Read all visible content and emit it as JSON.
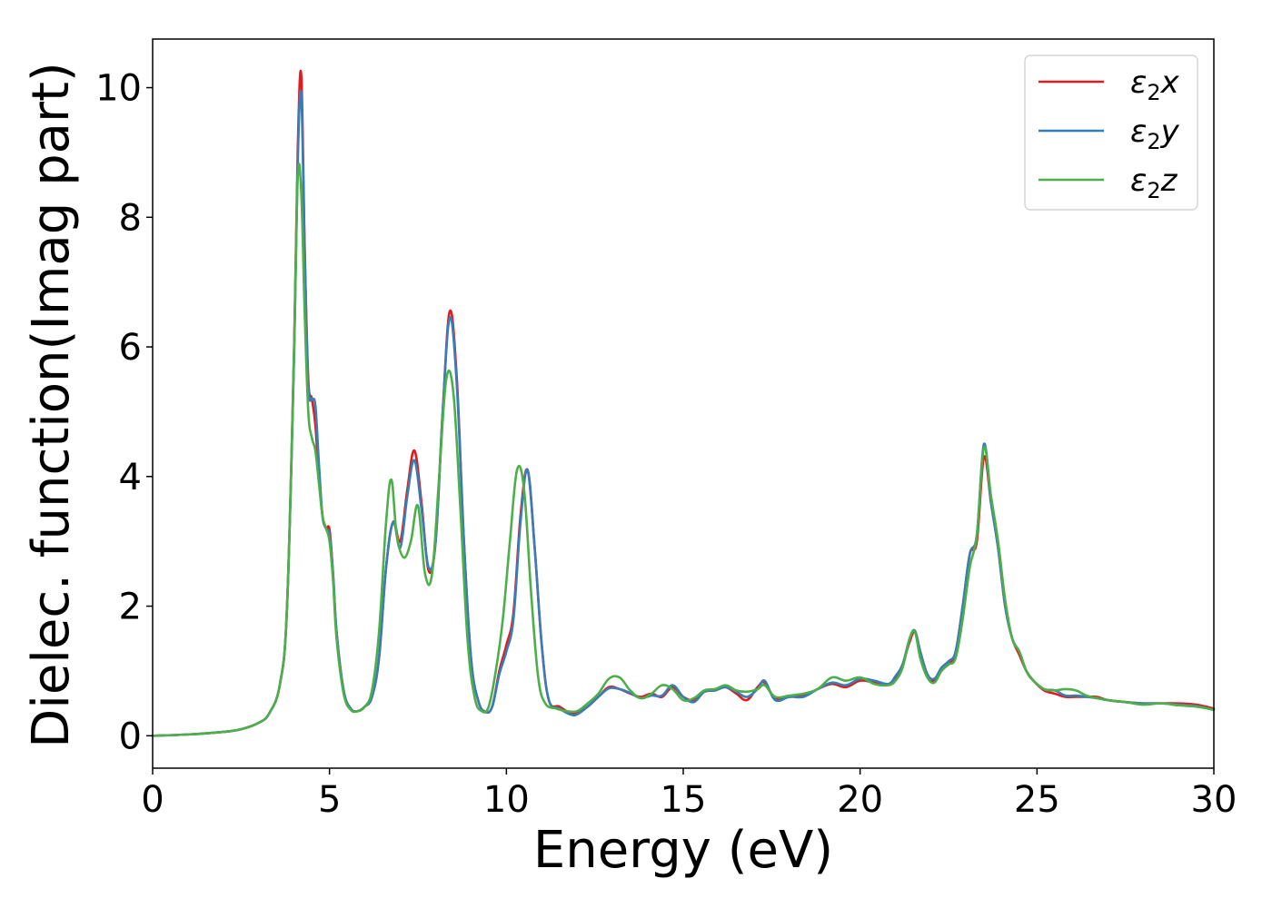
{
  "chart_data": {
    "type": "line",
    "title": "",
    "xlabel": "Energy (eV)",
    "ylabel": "Dielec. function(Imag part)",
    "xlim": [
      0,
      30
    ],
    "ylim": [
      -0.5,
      10.75
    ],
    "xticks": [
      0,
      5,
      10,
      15,
      20,
      25,
      30
    ],
    "yticks": [
      0,
      2,
      4,
      6,
      8,
      10
    ],
    "xtick_labels": [
      "0",
      "5",
      "10",
      "15",
      "20",
      "25",
      "30"
    ],
    "ytick_labels": [
      "0",
      "2",
      "4",
      "6",
      "8",
      "10"
    ],
    "grid": false,
    "legend_position": "top-right",
    "series": [
      {
        "name": "ε2x",
        "legend_base": "ε",
        "legend_sub": "2",
        "legend_var": "x",
        "color": "#e41a1c",
        "x": [
          0,
          1,
          2,
          2.5,
          3,
          3.3,
          3.6,
          3.8,
          4.0,
          4.1,
          4.2,
          4.3,
          4.4,
          4.5,
          4.6,
          4.7,
          4.8,
          4.9,
          5.0,
          5.1,
          5.2,
          5.4,
          5.6,
          5.8,
          6.0,
          6.2,
          6.4,
          6.6,
          6.8,
          7.0,
          7.2,
          7.4,
          7.6,
          7.8,
          8.0,
          8.2,
          8.4,
          8.6,
          8.8,
          9.0,
          9.2,
          9.4,
          9.6,
          9.8,
          10.0,
          10.2,
          10.4,
          10.6,
          10.8,
          11.0,
          11.2,
          11.5,
          11.8,
          12.0,
          12.3,
          12.6,
          12.9,
          13.2,
          13.5,
          13.8,
          14.1,
          14.4,
          14.7,
          15.0,
          15.3,
          15.6,
          15.9,
          16.2,
          16.5,
          16.8,
          17.1,
          17.3,
          17.6,
          18.0,
          18.4,
          18.8,
          19.2,
          19.6,
          20.0,
          20.4,
          20.8,
          21.0,
          21.2,
          21.4,
          21.55,
          21.7,
          21.9,
          22.1,
          22.3,
          22.5,
          22.7,
          22.9,
          23.1,
          23.3,
          23.5,
          23.7,
          23.9,
          24.1,
          24.3,
          24.5,
          24.7,
          24.9,
          25.2,
          25.5,
          25.8,
          26.1,
          26.4,
          26.7,
          27.0,
          27.5,
          28.0,
          28.5,
          29.0,
          29.5,
          30.0
        ],
        "y": [
          0.0,
          0.02,
          0.06,
          0.1,
          0.2,
          0.35,
          0.8,
          2.0,
          6.0,
          9.0,
          10.2,
          7.5,
          5.5,
          5.2,
          4.8,
          4.0,
          3.4,
          3.2,
          3.18,
          2.5,
          1.6,
          0.7,
          0.42,
          0.38,
          0.45,
          0.6,
          1.2,
          2.6,
          3.3,
          3.0,
          3.8,
          4.4,
          3.6,
          2.55,
          3.0,
          5.0,
          6.55,
          5.5,
          3.0,
          1.2,
          0.55,
          0.37,
          0.45,
          1.0,
          1.4,
          1.9,
          3.4,
          4.1,
          2.9,
          1.4,
          0.55,
          0.45,
          0.35,
          0.35,
          0.45,
          0.6,
          0.75,
          0.72,
          0.65,
          0.6,
          0.65,
          0.6,
          0.75,
          0.6,
          0.55,
          0.68,
          0.7,
          0.75,
          0.65,
          0.55,
          0.75,
          0.82,
          0.58,
          0.6,
          0.62,
          0.72,
          0.8,
          0.75,
          0.85,
          0.82,
          0.8,
          0.9,
          1.1,
          1.45,
          1.6,
          1.3,
          0.95,
          0.85,
          1.05,
          1.1,
          1.3,
          2.0,
          2.8,
          3.0,
          4.3,
          3.6,
          2.9,
          2.0,
          1.5,
          1.25,
          1.0,
          0.85,
          0.7,
          0.65,
          0.6,
          0.6,
          0.6,
          0.6,
          0.55,
          0.52,
          0.5,
          0.5,
          0.5,
          0.48,
          0.42
        ]
      },
      {
        "name": "ε2y",
        "legend_base": "ε",
        "legend_sub": "2",
        "legend_var": "y",
        "color": "#377eb8",
        "x": [
          0,
          1,
          2,
          2.5,
          3,
          3.3,
          3.6,
          3.8,
          4.0,
          4.1,
          4.2,
          4.3,
          4.4,
          4.5,
          4.6,
          4.7,
          4.8,
          4.9,
          5.0,
          5.1,
          5.2,
          5.4,
          5.6,
          5.8,
          6.0,
          6.2,
          6.4,
          6.6,
          6.8,
          7.0,
          7.2,
          7.4,
          7.6,
          7.8,
          8.0,
          8.2,
          8.4,
          8.6,
          8.8,
          9.0,
          9.2,
          9.4,
          9.6,
          9.8,
          10.0,
          10.2,
          10.4,
          10.6,
          10.8,
          11.0,
          11.2,
          11.5,
          11.8,
          12.0,
          12.3,
          12.6,
          12.9,
          13.2,
          13.5,
          13.8,
          14.1,
          14.4,
          14.7,
          15.0,
          15.3,
          15.6,
          15.9,
          16.2,
          16.5,
          16.8,
          17.1,
          17.3,
          17.6,
          18.0,
          18.4,
          18.8,
          19.2,
          19.6,
          20.0,
          20.4,
          20.8,
          21.0,
          21.2,
          21.4,
          21.55,
          21.7,
          21.9,
          22.1,
          22.3,
          22.5,
          22.7,
          22.9,
          23.1,
          23.3,
          23.5,
          23.7,
          23.9,
          24.1,
          24.3,
          24.5,
          24.7,
          24.9,
          25.2,
          25.5,
          25.8,
          26.1,
          26.4,
          26.7,
          27.0,
          27.5,
          28.0,
          28.5,
          29.0,
          29.5,
          30.0
        ],
        "y": [
          0.0,
          0.02,
          0.06,
          0.1,
          0.2,
          0.35,
          0.8,
          2.0,
          5.9,
          8.8,
          9.9,
          7.4,
          5.4,
          5.2,
          5.1,
          4.2,
          3.4,
          3.2,
          3.1,
          2.5,
          1.6,
          0.7,
          0.42,
          0.38,
          0.45,
          0.6,
          1.2,
          2.6,
          3.3,
          2.9,
          3.7,
          4.25,
          3.5,
          2.6,
          3.0,
          5.0,
          6.45,
          5.4,
          3.0,
          1.2,
          0.55,
          0.37,
          0.45,
          0.95,
          1.3,
          1.8,
          3.3,
          4.1,
          2.9,
          1.4,
          0.55,
          0.42,
          0.33,
          0.33,
          0.45,
          0.6,
          0.73,
          0.72,
          0.66,
          0.58,
          0.62,
          0.62,
          0.78,
          0.6,
          0.52,
          0.68,
          0.7,
          0.75,
          0.68,
          0.6,
          0.72,
          0.85,
          0.55,
          0.6,
          0.6,
          0.72,
          0.82,
          0.78,
          0.88,
          0.85,
          0.8,
          0.92,
          1.1,
          1.5,
          1.62,
          1.3,
          0.95,
          0.88,
          1.05,
          1.15,
          1.3,
          2.0,
          2.8,
          3.1,
          4.5,
          3.6,
          2.9,
          2.0,
          1.5,
          1.3,
          1.0,
          0.85,
          0.72,
          0.7,
          0.62,
          0.62,
          0.6,
          0.58,
          0.55,
          0.52,
          0.5,
          0.5,
          0.48,
          0.46,
          0.4
        ]
      },
      {
        "name": "ε2z",
        "legend_base": "ε",
        "legend_sub": "2",
        "legend_var": "z",
        "color": "#4daf4a",
        "x": [
          0,
          1,
          2,
          2.5,
          3,
          3.3,
          3.6,
          3.8,
          4.0,
          4.1,
          4.2,
          4.3,
          4.4,
          4.5,
          4.6,
          4.7,
          4.8,
          4.9,
          5.0,
          5.1,
          5.2,
          5.4,
          5.6,
          5.8,
          6.0,
          6.2,
          6.4,
          6.6,
          6.75,
          6.9,
          7.1,
          7.3,
          7.5,
          7.7,
          7.9,
          8.1,
          8.3,
          8.5,
          8.7,
          8.9,
          9.1,
          9.3,
          9.5,
          9.7,
          9.9,
          10.1,
          10.3,
          10.5,
          10.7,
          10.9,
          11.1,
          11.4,
          11.7,
          12.0,
          12.3,
          12.6,
          12.9,
          13.2,
          13.5,
          13.8,
          14.1,
          14.4,
          14.7,
          15.0,
          15.3,
          15.6,
          15.9,
          16.2,
          16.5,
          16.8,
          17.1,
          17.3,
          17.6,
          18.0,
          18.4,
          18.8,
          19.2,
          19.6,
          20.0,
          20.4,
          20.8,
          21.0,
          21.2,
          21.4,
          21.55,
          21.7,
          21.9,
          22.1,
          22.3,
          22.5,
          22.7,
          22.9,
          23.1,
          23.3,
          23.5,
          23.7,
          23.9,
          24.1,
          24.3,
          24.5,
          24.7,
          24.9,
          25.2,
          25.5,
          25.8,
          26.1,
          26.4,
          26.7,
          27.0,
          27.5,
          28.0,
          28.5,
          29.0,
          29.5,
          30.0
        ],
        "y": [
          0.0,
          0.02,
          0.06,
          0.1,
          0.2,
          0.35,
          0.8,
          2.0,
          6.0,
          8.6,
          8.4,
          6.5,
          5.0,
          4.6,
          4.4,
          3.9,
          3.4,
          3.2,
          3.0,
          2.4,
          1.5,
          0.65,
          0.4,
          0.38,
          0.45,
          0.7,
          1.6,
          3.3,
          3.95,
          3.1,
          2.75,
          3.0,
          3.55,
          2.5,
          2.5,
          4.0,
          5.5,
          5.3,
          3.5,
          1.5,
          0.6,
          0.38,
          0.45,
          1.0,
          1.8,
          3.0,
          4.1,
          3.8,
          2.2,
          0.9,
          0.5,
          0.42,
          0.38,
          0.38,
          0.5,
          0.65,
          0.88,
          0.9,
          0.7,
          0.58,
          0.65,
          0.78,
          0.72,
          0.55,
          0.58,
          0.7,
          0.72,
          0.78,
          0.7,
          0.68,
          0.72,
          0.78,
          0.6,
          0.62,
          0.65,
          0.72,
          0.9,
          0.85,
          0.9,
          0.8,
          0.78,
          0.85,
          1.05,
          1.5,
          1.6,
          1.2,
          0.9,
          0.82,
          1.0,
          1.1,
          1.2,
          1.8,
          2.6,
          3.1,
          4.45,
          3.7,
          3.0,
          2.1,
          1.5,
          1.3,
          1.0,
          0.85,
          0.72,
          0.7,
          0.72,
          0.7,
          0.62,
          0.58,
          0.55,
          0.52,
          0.48,
          0.5,
          0.47,
          0.45,
          0.4
        ]
      }
    ]
  }
}
